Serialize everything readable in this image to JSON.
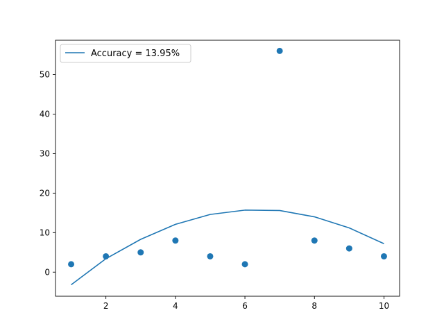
{
  "chart_data": {
    "type": "scatter",
    "title": "",
    "xlabel": "",
    "ylabel": "",
    "xlim": [
      0.55,
      10.45
    ],
    "ylim": [
      -6.1,
      58.7
    ],
    "xticks": [
      2,
      4,
      6,
      8,
      10
    ],
    "yticks": [
      0,
      10,
      20,
      30,
      40,
      50
    ],
    "grid": false,
    "legend_position": "top-left",
    "color": "#1f77b4",
    "series": [
      {
        "type": "scatter",
        "x": [
          1,
          2,
          3,
          4,
          5,
          6,
          7,
          8,
          9,
          10
        ],
        "y": [
          2,
          4,
          5,
          8,
          4,
          2,
          56,
          8,
          6,
          4
        ]
      },
      {
        "type": "line",
        "name": "Accuracy = 13.95%",
        "x": [
          1,
          2,
          3,
          4,
          5,
          6,
          7,
          8,
          9,
          10
        ],
        "y": [
          -3.2,
          3.4,
          8.3,
          12.1,
          14.6,
          15.7,
          15.6,
          14.0,
          11.2,
          7.2
        ]
      }
    ]
  }
}
